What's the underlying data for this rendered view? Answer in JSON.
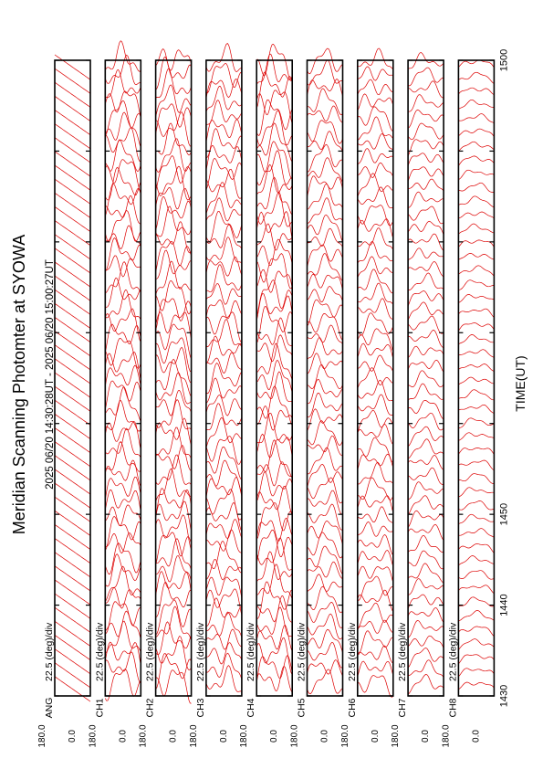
{
  "title": "Meridian Scanning Photomter at SYOWA",
  "subtitle": "2025 06/20 14:30:28UT - 2025 06/20 15:00:27UT",
  "chart_data": {
    "type": "line",
    "title": "Meridian Scanning Photomter at SYOWA",
    "subtitle": "2025 06/20 14:30:28UT - 2025 06/20 15:00:27UT",
    "xlabel": "TIME(UT)",
    "x_ticks": [
      "1430",
      "1440",
      "1450",
      "1500"
    ],
    "xlim": [
      1430,
      1500
    ],
    "y_ticks": [
      "180.0",
      "0.0"
    ],
    "ylim": [
      0,
      180
    ],
    "scale_label": "22.5 (deg)/div",
    "panels": [
      {
        "channel": "ANG",
        "traces": 46,
        "amp": 0.9,
        "irreg": 0.0,
        "kind": "saw"
      },
      {
        "channel": "CH1",
        "traces": 46,
        "amp": 0.55,
        "irreg": 0.75,
        "kind": "scan"
      },
      {
        "channel": "CH2",
        "traces": 46,
        "amp": 0.55,
        "irreg": 0.8,
        "kind": "scan"
      },
      {
        "channel": "CH3",
        "traces": 46,
        "amp": 0.5,
        "irreg": 0.7,
        "kind": "scan"
      },
      {
        "channel": "CH4",
        "traces": 46,
        "amp": 0.55,
        "irreg": 0.85,
        "kind": "scan"
      },
      {
        "channel": "CH5",
        "traces": 46,
        "amp": 0.5,
        "irreg": 0.55,
        "kind": "scan"
      },
      {
        "channel": "CH6",
        "traces": 46,
        "amp": 0.45,
        "irreg": 0.5,
        "kind": "scan"
      },
      {
        "channel": "CH7",
        "traces": 46,
        "amp": 0.4,
        "irreg": 0.35,
        "kind": "scan"
      },
      {
        "channel": "CH8",
        "traces": 46,
        "amp": 0.3,
        "irreg": 0.15,
        "kind": "scan"
      }
    ],
    "line_color": "#dd0000",
    "grid": false
  }
}
